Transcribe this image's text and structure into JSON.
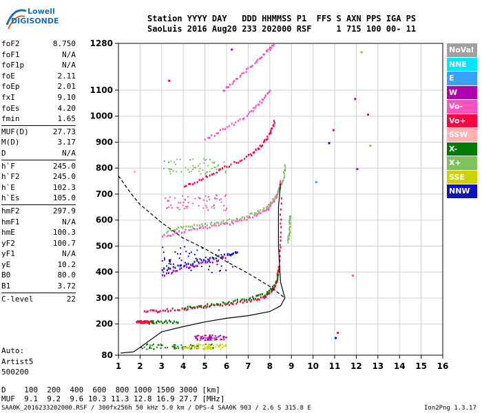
{
  "logo": {
    "line1": "Lowell",
    "line2": "DIGISONDE"
  },
  "header": {
    "row1": "Station YYYY DAY   DDD HHMMSS P1  FFS S AXN PPS IGA PS",
    "row2": "SaoLuis 2016 Aug20 233 202000 RSF     1 715 100 00- 11"
  },
  "params": [
    {
      "k": "foF2",
      "v": "8.750"
    },
    {
      "k": "foF1",
      "v": "N/A"
    },
    {
      "k": "foF1p",
      "v": "N/A"
    },
    {
      "k": "foE",
      "v": "2.11"
    },
    {
      "k": "foEp",
      "v": "2.01"
    },
    {
      "k": "fxI",
      "v": "9.10"
    },
    {
      "k": "foEs",
      "v": "4.20"
    },
    {
      "k": "fmin",
      "v": "1.65"
    },
    {
      "k": "MUF(D)",
      "v": "27.73"
    },
    {
      "k": "M(D)",
      "v": "3.17"
    },
    {
      "k": "D",
      "v": "N/A"
    },
    {
      "k": "h`F",
      "v": "245.0"
    },
    {
      "k": "h`F2",
      "v": "245.0"
    },
    {
      "k": "h`E",
      "v": "102.3"
    },
    {
      "k": "h`Es",
      "v": "105.0"
    },
    {
      "k": "hmF2",
      "v": "297.9"
    },
    {
      "k": "hmF1",
      "v": "N/A"
    },
    {
      "k": "hmE",
      "v": "100.3"
    },
    {
      "k": "yF2",
      "v": "100.7"
    },
    {
      "k": "yF1",
      "v": "N/A"
    },
    {
      "k": "yE",
      "v": "10.2"
    },
    {
      "k": "B0",
      "v": "80.0"
    },
    {
      "k": "B1",
      "v": "3.72"
    },
    {
      "k": "C-level",
      "v": "22"
    }
  ],
  "auto": {
    "l1": "Auto:",
    "l2": "Artist5",
    "l3": "500200"
  },
  "legend": [
    {
      "label": "NoVal",
      "color": "#a0a0a0"
    },
    {
      "label": "NNE",
      "color": "#00e5ff"
    },
    {
      "label": "E",
      "color": "#3aa0ff"
    },
    {
      "label": "W",
      "color": "#b000b0"
    },
    {
      "label": "Vo-",
      "color": "#ff4fc0"
    },
    {
      "label": "Vo+",
      "color": "#ff0040"
    },
    {
      "label": "SSW",
      "color": "#ffb0b0"
    },
    {
      "label": "X-",
      "color": "#007a00"
    },
    {
      "label": "X+",
      "color": "#80c060"
    },
    {
      "label": "SSE",
      "color": "#d0d000"
    },
    {
      "label": "NNW",
      "color": "#1010c0"
    }
  ],
  "muf_table": {
    "row1": "D    100  200  400  600  800 1000 1500 3000 [km]",
    "row2": "MUF  9.1  9.2  9.6 10.3 11.3 12.8 16.9 27.7 [MHz]"
  },
  "footer": {
    "left": "SAA0K_2016233202000.RSF / 300fx256h 50 kHz 5.0 km / DPS-4 SAA0K 903 / 2.6 S 315.8 E",
    "right": "Ion2Png 1.3.17"
  },
  "chart_data": {
    "type": "scatter",
    "xlabel": "",
    "ylabel": "",
    "xlim": [
      1,
      16
    ],
    "ylim": [
      80,
      1280
    ],
    "xticks": [
      1,
      2,
      3,
      4,
      5,
      6,
      7,
      8,
      9,
      10,
      11,
      12,
      13,
      14,
      15,
      16
    ],
    "yticks": [
      80,
      200,
      300,
      400,
      500,
      600,
      700,
      800,
      900,
      1000,
      1100,
      1280
    ],
    "grid": true,
    "series": [
      {
        "name": "",
        "style": "solid",
        "points": [
          [
            1.1,
            88
          ],
          [
            1.7,
            93
          ],
          [
            2.0,
            110
          ],
          [
            3.0,
            170
          ],
          [
            4.0,
            190
          ],
          [
            5.0,
            208
          ],
          [
            6.0,
            222
          ],
          [
            7.0,
            232
          ],
          [
            8.0,
            248
          ],
          [
            8.5,
            270
          ],
          [
            8.7,
            300
          ],
          [
            8.5,
            360
          ],
          [
            8.4,
            500
          ],
          [
            8.4,
            650
          ],
          [
            8.5,
            740
          ]
        ]
      },
      {
        "name": "",
        "style": "dashed",
        "points": [
          [
            1.0,
            770
          ],
          [
            1.6,
            700
          ],
          [
            2.0,
            660
          ],
          [
            3.0,
            590
          ],
          [
            4.0,
            530
          ],
          [
            5.0,
            490
          ],
          [
            6.0,
            440
          ],
          [
            7.0,
            395
          ],
          [
            8.0,
            345
          ],
          [
            8.7,
            300
          ]
        ]
      }
    ],
    "traces": [
      {
        "color": "#ff0040",
        "points": [
          [
            2.2,
            250
          ],
          [
            3,
            255
          ],
          [
            4,
            262
          ],
          [
            5,
            270
          ],
          [
            6,
            280
          ],
          [
            7,
            292
          ],
          [
            7.7,
            305
          ],
          [
            8.1,
            330
          ],
          [
            8.3,
            370
          ],
          [
            8.4,
            420
          ],
          [
            8.45,
            520
          ],
          [
            8.5,
            700
          ]
        ]
      },
      {
        "color": "#007a00",
        "points": [
          [
            4,
            265
          ],
          [
            5,
            275
          ],
          [
            6,
            285
          ],
          [
            7,
            300
          ],
          [
            7.8,
            320
          ],
          [
            8.2,
            350
          ],
          [
            8.4,
            400
          ]
        ]
      },
      {
        "color": "#ff4fc0",
        "points": [
          [
            3,
            540
          ],
          [
            4,
            560
          ],
          [
            5,
            575
          ],
          [
            6,
            590
          ],
          [
            7,
            610
          ],
          [
            7.8,
            640
          ],
          [
            8.2,
            680
          ],
          [
            8.4,
            720
          ],
          [
            8.5,
            760
          ]
        ]
      },
      {
        "color": "#80c060",
        "points": [
          [
            3.2,
            560
          ],
          [
            4,
            575
          ],
          [
            5,
            585
          ],
          [
            6,
            600
          ],
          [
            7,
            620
          ],
          [
            7.8,
            650
          ],
          [
            8.3,
            700
          ],
          [
            8.6,
            760
          ],
          [
            8.7,
            820
          ]
        ]
      },
      {
        "color": "#ff0040",
        "points": [
          [
            4,
            730
          ],
          [
            5,
            770
          ],
          [
            6,
            810
          ],
          [
            7,
            850
          ],
          [
            7.6,
            890
          ],
          [
            8.0,
            940
          ],
          [
            8.2,
            990
          ]
        ]
      },
      {
        "color": "#ff4fc0",
        "points": [
          [
            5,
            910
          ],
          [
            6,
            960
          ],
          [
            7,
            1010
          ],
          [
            7.6,
            1060
          ],
          [
            8.0,
            1110
          ]
        ]
      },
      {
        "color": "#ff4fc0",
        "points": [
          [
            5.8,
            1100
          ],
          [
            6.5,
            1150
          ],
          [
            7.2,
            1200
          ],
          [
            7.8,
            1250
          ],
          [
            8.2,
            1280
          ]
        ]
      },
      {
        "color": "#1010c0",
        "points": [
          [
            3,
            410
          ],
          [
            4,
            430
          ],
          [
            5,
            450
          ],
          [
            6,
            470
          ],
          [
            6.5,
            480
          ]
        ]
      },
      {
        "color": "#b000b0",
        "points": [
          [
            3,
            390
          ],
          [
            4,
            420
          ],
          [
            5,
            440
          ],
          [
            6,
            460
          ]
        ]
      },
      {
        "color": "#007a00",
        "points": [
          [
            2.4,
            210
          ],
          [
            3,
            212
          ],
          [
            3.8,
            212
          ]
        ]
      },
      {
        "color": "#80c060",
        "points": [
          [
            8.8,
            520
          ],
          [
            8.9,
            560
          ],
          [
            8.9,
            600
          ],
          [
            8.9,
            620
          ]
        ]
      }
    ],
    "scatter": [
      {
        "color": "#ff0040",
        "x": 3.3,
        "y": 1140
      },
      {
        "color": "#b000b0",
        "x": 6.2,
        "y": 1260
      },
      {
        "color": "#ff0040",
        "x": 10.9,
        "y": 950
      },
      {
        "color": "#1010c0",
        "x": 10.7,
        "y": 900
      },
      {
        "color": "#b000b0",
        "x": 11.9,
        "y": 1070
      },
      {
        "color": "#ff0040",
        "x": 12.5,
        "y": 1010
      },
      {
        "color": "#3aa0ff",
        "x": 10.1,
        "y": 750
      },
      {
        "color": "#80c060",
        "x": 12.6,
        "y": 890
      },
      {
        "color": "#ff0040",
        "x": 11.1,
        "y": 170
      },
      {
        "color": "#1010c0",
        "x": 11.0,
        "y": 150
      },
      {
        "color": "#b000b0",
        "x": 12.0,
        "y": 800
      },
      {
        "color": "#80c060",
        "x": 12.2,
        "y": 1250
      },
      {
        "color": "#ff4fc0",
        "x": 11.8,
        "y": 390
      },
      {
        "color": "#ffb0b0",
        "x": 1.7,
        "y": 790
      }
    ],
    "clusters": [
      {
        "color": "#007a00",
        "x": [
          2.0,
          5.5
        ],
        "y": [
          105,
          125
        ]
      },
      {
        "color": "#b000b0",
        "x": [
          4.5,
          6.0
        ],
        "y": [
          140,
          160
        ]
      },
      {
        "color": "#d0d000",
        "x": [
          4.0,
          6.0
        ],
        "y": [
          105,
          125
        ]
      },
      {
        "color": "#1010c0",
        "x": [
          3.0,
          6.5
        ],
        "y": [
          400,
          500
        ]
      },
      {
        "color": "#ff4fc0",
        "x": [
          3.0,
          6.0
        ],
        "y": [
          640,
          700
        ]
      },
      {
        "color": "#80c060",
        "x": [
          3.0,
          6.0
        ],
        "y": [
          780,
          840
        ]
      },
      {
        "color": "#ff0040",
        "x": [
          1.8,
          2.6
        ],
        "y": [
          205,
          215
        ]
      }
    ]
  }
}
